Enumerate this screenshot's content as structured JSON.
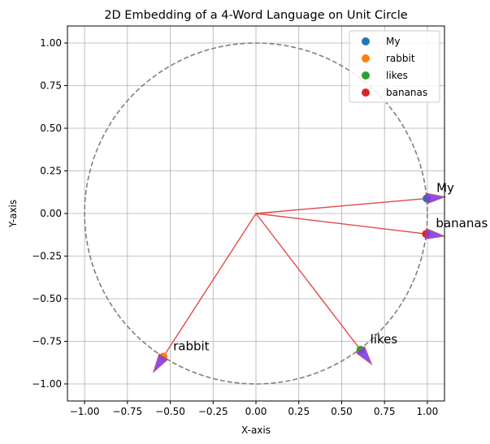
{
  "chart_data": {
    "type": "scatter",
    "title": "2D Embedding of a 4-Word Language on Unit Circle",
    "xlabel": "X-axis",
    "ylabel": "Y-axis",
    "xlim": [
      -1.1,
      1.1
    ],
    "ylim": [
      -1.1,
      1.1
    ],
    "xticks": [
      "−1.00",
      "−0.75",
      "−0.50",
      "−0.25",
      "0.00",
      "0.25",
      "0.50",
      "0.75",
      "1.00"
    ],
    "yticks": [
      "1.00",
      "0.75",
      "0.50",
      "0.25",
      "0.00",
      "−0.25",
      "−0.50",
      "−0.75",
      "−1.00"
    ],
    "grid": true,
    "legend_position": "top-right",
    "unit_circle": {
      "radius": 1.0,
      "style": "dashed",
      "color": "#808080"
    },
    "series": [
      {
        "name": "My",
        "x": 0.996,
        "y": 0.088,
        "color": "#1f77b4"
      },
      {
        "name": "rabbit",
        "x": -0.54,
        "y": -0.84,
        "color": "#ff7f0e"
      },
      {
        "name": "likes",
        "x": 0.61,
        "y": -0.8,
        "color": "#2ca02c"
      },
      {
        "name": "bananas",
        "x": 0.993,
        "y": -0.12,
        "color": "#d62728"
      }
    ],
    "vector_color": "#e04040",
    "arrowhead_color": "#7b3fe8"
  }
}
